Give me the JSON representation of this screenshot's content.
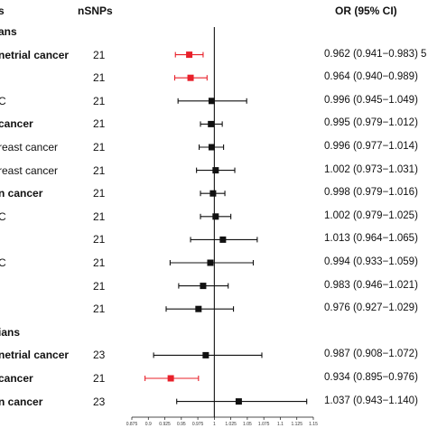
{
  "header": {
    "col_label": "s",
    "col_n": "nSNPs",
    "col_or": "OR (95% CI)"
  },
  "colors": {
    "significant": "#e8202a",
    "nonsignificant": "#111111"
  },
  "chart_data": {
    "type": "forest",
    "x_ticks": [
      "0.875",
      "0.9",
      "0.925",
      "0.95",
      "0.975",
      "1",
      "1.025",
      "1.05",
      "1.075",
      "1.1",
      "1.125",
      "1.15"
    ],
    "xlim": [
      0.875,
      1.15
    ],
    "reference_line": 1,
    "rows": [
      {
        "label": "ans",
        "bold": true,
        "kind": "group"
      },
      {
        "label": "netrial cancer",
        "bold": true,
        "n": "21",
        "or": 0.962,
        "lo": 0.941,
        "hi": 0.983,
        "ci_text": "0.962 (0.941−0.983)",
        "ci_suffix": "5",
        "significant": true
      },
      {
        "label": "",
        "bold": false,
        "n": "21",
        "or": 0.964,
        "lo": 0.94,
        "hi": 0.989,
        "ci_text": "0.964 (0.940−0.989)",
        "significant": true
      },
      {
        "label": "C",
        "bold": false,
        "n": "21",
        "or": 0.996,
        "lo": 0.945,
        "hi": 1.049,
        "ci_text": "0.996 (0.945−1.049)",
        "significant": false
      },
      {
        "label": "cancer",
        "bold": true,
        "n": "21",
        "or": 0.995,
        "lo": 0.979,
        "hi": 1.012,
        "ci_text": "0.995 (0.979−1.012)",
        "significant": false
      },
      {
        "label": "reast cancer",
        "bold": false,
        "n": "21",
        "or": 0.996,
        "lo": 0.977,
        "hi": 1.014,
        "ci_text": "0.996 (0.977−1.014)",
        "significant": false
      },
      {
        "label": "reast cancer",
        "bold": false,
        "n": "21",
        "or": 1.002,
        "lo": 0.973,
        "hi": 1.031,
        "ci_text": "1.002 (0.973−1.031)",
        "significant": false
      },
      {
        "label": "n cancer",
        "bold": true,
        "n": "21",
        "or": 0.998,
        "lo": 0.979,
        "hi": 1.016,
        "ci_text": "0.998 (0.979−1.016)",
        "significant": false
      },
      {
        "label": "C",
        "bold": false,
        "n": "21",
        "or": 1.002,
        "lo": 0.979,
        "hi": 1.025,
        "ci_text": "1.002 (0.979−1.025)",
        "significant": false
      },
      {
        "label": "",
        "bold": false,
        "n": "21",
        "or": 1.013,
        "lo": 0.964,
        "hi": 1.065,
        "ci_text": "1.013 (0.964−1.065)",
        "significant": false
      },
      {
        "label": "C",
        "bold": false,
        "n": "21",
        "or": 0.994,
        "lo": 0.933,
        "hi": 1.059,
        "ci_text": "0.994 (0.933−1.059)",
        "significant": false
      },
      {
        "label": "",
        "bold": false,
        "n": "21",
        "or": 0.983,
        "lo": 0.946,
        "hi": 1.021,
        "ci_text": "0.983 (0.946−1.021)",
        "significant": false
      },
      {
        "label": "",
        "bold": false,
        "n": "21",
        "or": 0.976,
        "lo": 0.927,
        "hi": 1.029,
        "ci_text": "0.976 (0.927−1.029)",
        "significant": false
      },
      {
        "label": "ians",
        "bold": true,
        "kind": "group"
      },
      {
        "label": "netrial cancer",
        "bold": true,
        "n": "23",
        "or": 0.987,
        "lo": 0.908,
        "hi": 1.072,
        "ci_text": "0.987 (0.908−1.072)",
        "significant": false
      },
      {
        "label": "cancer",
        "bold": true,
        "n": "21",
        "or": 0.934,
        "lo": 0.895,
        "hi": 0.976,
        "ci_text": "0.934 (0.895−0.976)",
        "significant": true
      },
      {
        "label": "n cancer",
        "bold": true,
        "n": "23",
        "or": 1.037,
        "lo": 0.943,
        "hi": 1.14,
        "ci_text": "1.037 (0.943−1.140)",
        "significant": false
      }
    ]
  }
}
